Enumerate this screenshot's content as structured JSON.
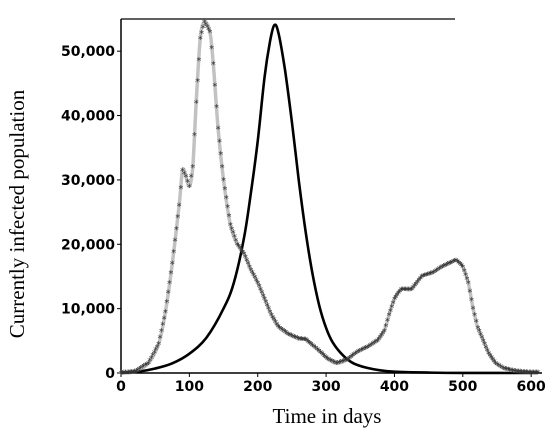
{
  "chart_data": {
    "type": "line",
    "title": "",
    "xlabel": "Time in days",
    "ylabel": "Currently infected population",
    "xlim": [
      0,
      610
    ],
    "ylim": [
      0,
      55000
    ],
    "grid": false,
    "x_ticks": [
      {
        "value": 0,
        "label": "0"
      },
      {
        "value": 100,
        "label": "100"
      },
      {
        "value": 200,
        "label": "200"
      },
      {
        "value": 300,
        "label": "300"
      },
      {
        "value": 400,
        "label": "400"
      },
      {
        "value": 500,
        "label": "500"
      },
      {
        "value": 600,
        "label": "600"
      }
    ],
    "y_ticks": [
      {
        "value": 0,
        "label": "0"
      },
      {
        "value": 10000,
        "label": "10,000"
      },
      {
        "value": 20000,
        "label": "20,000"
      },
      {
        "value": 30000,
        "label": "30,000"
      },
      {
        "value": 40000,
        "label": "40,000"
      },
      {
        "value": 50000,
        "label": "50,000"
      }
    ],
    "series": [
      {
        "style": "solid",
        "color": "#000000",
        "points": [
          [
            0,
            0
          ],
          [
            25,
            200
          ],
          [
            50,
            700
          ],
          [
            75,
            1500
          ],
          [
            100,
            3000
          ],
          [
            125,
            5500
          ],
          [
            150,
            10000
          ],
          [
            165,
            14000
          ],
          [
            180,
            21000
          ],
          [
            190,
            28000
          ],
          [
            200,
            36000
          ],
          [
            210,
            46000
          ],
          [
            218,
            51500
          ],
          [
            224,
            54000
          ],
          [
            230,
            53000
          ],
          [
            240,
            47000
          ],
          [
            250,
            39000
          ],
          [
            260,
            30000
          ],
          [
            270,
            22000
          ],
          [
            280,
            15500
          ],
          [
            290,
            10500
          ],
          [
            300,
            7000
          ],
          [
            310,
            4700
          ],
          [
            325,
            2700
          ],
          [
            340,
            1500
          ],
          [
            360,
            800
          ],
          [
            380,
            400
          ],
          [
            400,
            200
          ],
          [
            450,
            60
          ],
          [
            500,
            10
          ],
          [
            610,
            0
          ]
        ]
      },
      {
        "style": "star-markers",
        "color": "#333333",
        "points": [
          [
            0,
            0
          ],
          [
            20,
            200
          ],
          [
            40,
            1500
          ],
          [
            55,
            4500
          ],
          [
            65,
            9500
          ],
          [
            75,
            17000
          ],
          [
            85,
            26000
          ],
          [
            90,
            31500
          ],
          [
            95,
            30500
          ],
          [
            100,
            29000
          ],
          [
            105,
            32000
          ],
          [
            110,
            42000
          ],
          [
            116,
            52000
          ],
          [
            122,
            54500
          ],
          [
            130,
            53000
          ],
          [
            135,
            48000
          ],
          [
            142,
            38000
          ],
          [
            150,
            30000
          ],
          [
            160,
            23000
          ],
          [
            170,
            20000
          ],
          [
            180,
            18500
          ],
          [
            190,
            16000
          ],
          [
            200,
            14000
          ],
          [
            210,
            11500
          ],
          [
            220,
            9000
          ],
          [
            230,
            7200
          ],
          [
            245,
            6000
          ],
          [
            260,
            5300
          ],
          [
            270,
            5200
          ],
          [
            280,
            4300
          ],
          [
            292,
            3200
          ],
          [
            302,
            2200
          ],
          [
            315,
            1500
          ],
          [
            330,
            2000
          ],
          [
            345,
            3200
          ],
          [
            360,
            4000
          ],
          [
            375,
            5000
          ],
          [
            385,
            6500
          ],
          [
            392,
            9000
          ],
          [
            400,
            11500
          ],
          [
            410,
            13000
          ],
          [
            425,
            13000
          ],
          [
            440,
            15000
          ],
          [
            455,
            15500
          ],
          [
            470,
            16500
          ],
          [
            480,
            17000
          ],
          [
            490,
            17500
          ],
          [
            500,
            16500
          ],
          [
            508,
            14000
          ],
          [
            515,
            10000
          ],
          [
            522,
            7000
          ],
          [
            530,
            5000
          ],
          [
            538,
            3000
          ],
          [
            548,
            1500
          ],
          [
            560,
            700
          ],
          [
            575,
            300
          ],
          [
            595,
            100
          ],
          [
            610,
            50
          ]
        ]
      }
    ]
  }
}
